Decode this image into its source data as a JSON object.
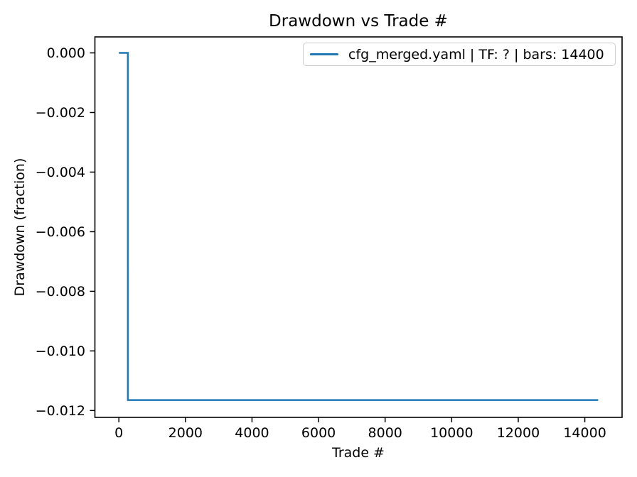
{
  "chart_data": {
    "type": "line",
    "title": "Drawdown vs Trade #",
    "xlabel": "Trade #",
    "ylabel": "Drawdown (fraction)",
    "grid": false,
    "legend_position": "upper right",
    "legend_edge_color": "#cccccc",
    "axis_color": "#000000",
    "xlim": [
      -720,
      15120
    ],
    "ylim": [
      -0.01223,
      0.000536
    ],
    "xticks": [
      0,
      2000,
      4000,
      6000,
      8000,
      10000,
      12000,
      14000
    ],
    "xtick_labels": [
      "0",
      "2000",
      "4000",
      "6000",
      "8000",
      "10000",
      "12000",
      "14000"
    ],
    "yticks": [
      0.0,
      -0.002,
      -0.004,
      -0.006,
      -0.008,
      -0.01,
      -0.012
    ],
    "ytick_labels": [
      "0.000",
      "−0.002",
      "−0.004",
      "−0.006",
      "−0.008",
      "−0.010",
      "−0.012"
    ],
    "series": [
      {
        "name": "cfg_merged.yaml | TF: ? | bars: 14400",
        "color": "#1f77b4",
        "points": [
          [
            0,
            0.0
          ],
          [
            270,
            0.0
          ],
          [
            271,
            -0.01165
          ],
          [
            14400,
            -0.01165
          ]
        ]
      }
    ]
  }
}
